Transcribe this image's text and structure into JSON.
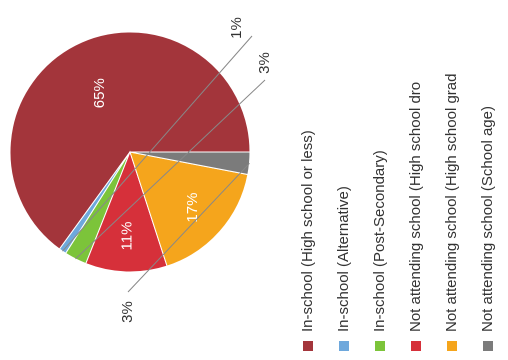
{
  "chart_data": {
    "type": "pie",
    "title": "",
    "slices": [
      {
        "label": "In-school (High school or less)",
        "value": 65,
        "value_label": "65%",
        "color": "#a3353b"
      },
      {
        "label": "In-school (Alternative)",
        "value": 1,
        "value_label": "1%",
        "color": "#6ea8dc"
      },
      {
        "label": "In-school (Post-Secondary)",
        "value": 3,
        "value_label": "3%",
        "color": "#7cc43a"
      },
      {
        "label": "Not attending school (High school dro",
        "value": 11,
        "value_label": "11%",
        "color": "#d6303a"
      },
      {
        "label": "Not attending school (High school grad",
        "value": 17,
        "value_label": "17%",
        "color": "#f5a51c"
      },
      {
        "label": "Not attending school (School age)",
        "value": 3,
        "value_label": "3%",
        "color": "#7b7b7b"
      }
    ],
    "legend_position": "right"
  }
}
